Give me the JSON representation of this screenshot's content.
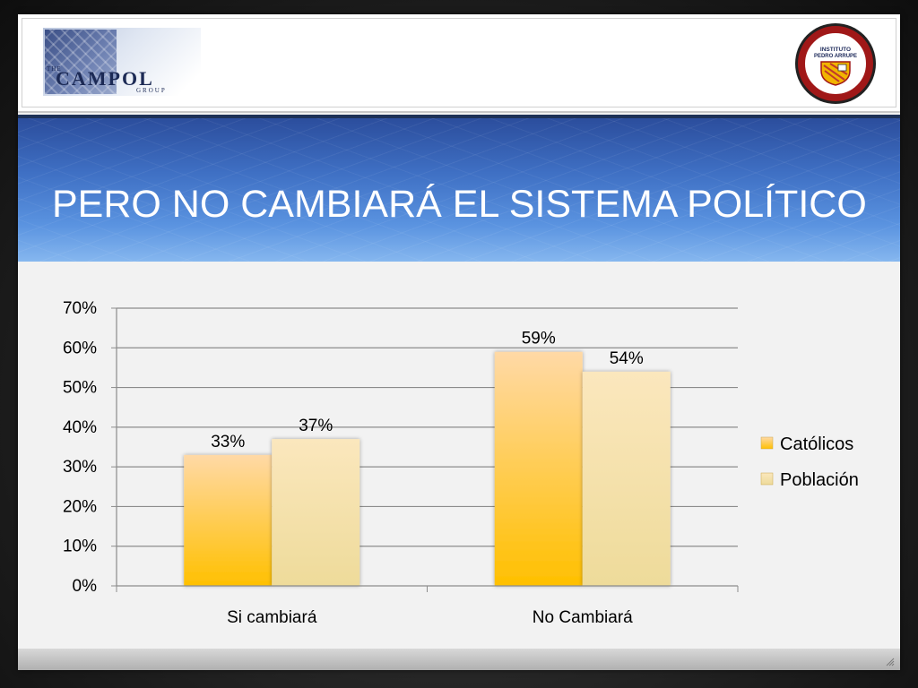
{
  "slide": {
    "title": "PERO NO CAMBIARÁ EL SISTEMA POLÍTICO"
  },
  "logos": {
    "left": {
      "small_top": "THE",
      "main": "CAMPOL",
      "small_bottom": "GROUP"
    },
    "right": {
      "name": "INSTITUTO PEDRO ARRUPE"
    }
  },
  "colors": {
    "catolicos_top": "#ffd9a6",
    "catolicos_bottom": "#ffc000",
    "poblacion_top": "#fbe7bd",
    "poblacion_bottom": "#eedb9a",
    "title_band": "#3f70c4",
    "gridline": "#8c8c8c"
  },
  "chart_data": {
    "type": "bar",
    "categories": [
      "Si cambiará",
      "No Cambiará"
    ],
    "series": [
      {
        "name": "Católicos",
        "values": [
          0.33,
          0.59
        ]
      },
      {
        "name": "Población",
        "values": [
          0.37,
          0.54
        ]
      }
    ],
    "data_labels": [
      [
        "33%",
        "59%"
      ],
      [
        "37%",
        "54%"
      ]
    ],
    "ylim": [
      0,
      0.7
    ],
    "yticks": [
      "0%",
      "10%",
      "20%",
      "30%",
      "40%",
      "50%",
      "60%",
      "70%"
    ],
    "grid": true,
    "legend": "right"
  }
}
